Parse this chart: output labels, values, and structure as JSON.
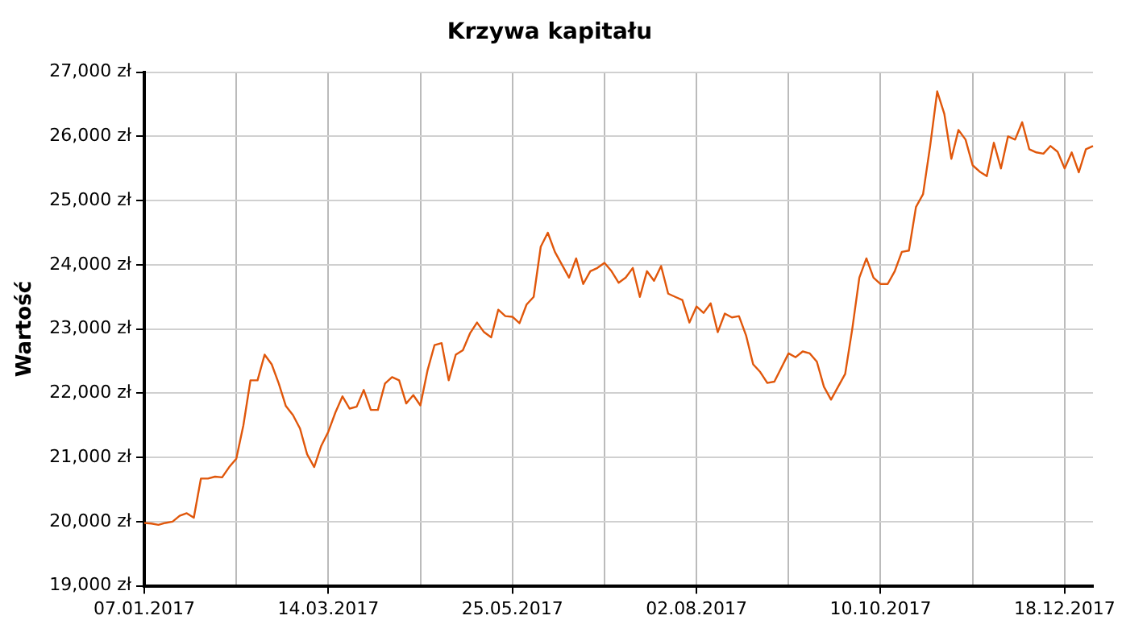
{
  "chart_data": {
    "type": "line",
    "title": "Krzywa kapitału",
    "ylabel": "Wartość",
    "categories": [
      "07.01.2017",
      null,
      null,
      null,
      null,
      null,
      null,
      null,
      null,
      null,
      null,
      null,
      null,
      null,
      null,
      null,
      null,
      null,
      null,
      null,
      null,
      null,
      null,
      null,
      null,
      null,
      "14.03.2017",
      null,
      null,
      null,
      null,
      null,
      null,
      null,
      null,
      null,
      null,
      null,
      null,
      null,
      null,
      null,
      null,
      null,
      null,
      null,
      null,
      null,
      null,
      null,
      null,
      null,
      "25.05.2017",
      null,
      null,
      null,
      null,
      null,
      null,
      null,
      null,
      null,
      null,
      null,
      null,
      null,
      null,
      null,
      null,
      null,
      null,
      null,
      null,
      null,
      null,
      null,
      null,
      null,
      "02.08.2017",
      null,
      null,
      null,
      null,
      null,
      null,
      null,
      null,
      null,
      null,
      null,
      null,
      null,
      null,
      null,
      null,
      null,
      null,
      null,
      null,
      null,
      null,
      null,
      null,
      null,
      "10.10.2017",
      null,
      null,
      null,
      null,
      null,
      null,
      null,
      null,
      null,
      null,
      null,
      null,
      null,
      null,
      null,
      null,
      null,
      null,
      null,
      null,
      null,
      null,
      null,
      null,
      null,
      "18.12.2017",
      null,
      null,
      null,
      null
    ],
    "series": [
      {
        "color": "#e0570b",
        "values": [
          19980,
          19970,
          19950,
          19980,
          20000,
          20090,
          20130,
          20060,
          20670,
          20670,
          20700,
          20690,
          20850,
          20980,
          21500,
          22200,
          22200,
          22600,
          22450,
          22150,
          21800,
          21660,
          21450,
          21050,
          20850,
          21180,
          21400,
          21700,
          21950,
          21760,
          21790,
          22050,
          21740,
          21740,
          22150,
          22250,
          22200,
          21840,
          21970,
          21810,
          22350,
          22750,
          22780,
          22200,
          22600,
          22670,
          22930,
          23100,
          22950,
          22870,
          23300,
          23200,
          23190,
          23090,
          23380,
          23500,
          24280,
          24500,
          24200,
          24000,
          23800,
          24100,
          23700,
          23900,
          23950,
          24030,
          23900,
          23720,
          23800,
          23950,
          23500,
          23900,
          23750,
          23980,
          23550,
          23500,
          23450,
          23100,
          23350,
          23250,
          23400,
          22950,
          23240,
          23180,
          23200,
          22900,
          22450,
          22330,
          22160,
          22180,
          22400,
          22620,
          22560,
          22650,
          22620,
          22490,
          22100,
          21900,
          22100,
          22300,
          23000,
          23800,
          24100,
          23800,
          23700,
          23700,
          23900,
          24200,
          24220,
          24900,
          25100,
          25850,
          26700,
          26350,
          25650,
          26100,
          25950,
          25550,
          25450,
          25380,
          25900,
          25500,
          26000,
          25950,
          26220,
          25800,
          25750,
          25730,
          25850,
          25760,
          25500,
          25750,
          25440,
          25800,
          25850
        ]
      }
    ],
    "ylim": [
      19000,
      27000
    ],
    "yticks": [
      {
        "value": 19000,
        "label": "19,000 zł"
      },
      {
        "value": 20000,
        "label": "20,000 zł"
      },
      {
        "value": 21000,
        "label": "21,000 zł"
      },
      {
        "value": 22000,
        "label": "22,000 zł"
      },
      {
        "value": 23000,
        "label": "23,000 zł"
      },
      {
        "value": 24000,
        "label": "24,000 zł"
      },
      {
        "value": 25000,
        "label": "25,000 zł"
      },
      {
        "value": 26000,
        "label": "26,000 zł"
      },
      {
        "value": 27000,
        "label": "27,000 zł"
      }
    ],
    "grid": true,
    "legend": false,
    "marker": "none",
    "line_style": "solid"
  }
}
